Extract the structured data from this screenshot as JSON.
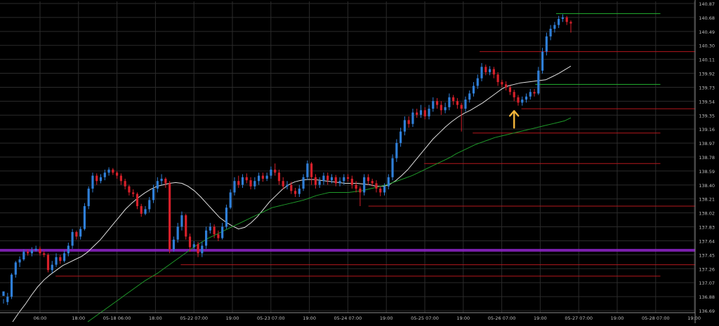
{
  "colors": {
    "background": "#000000",
    "grid": "#2b2b2b",
    "axis": "#8a8a8a",
    "tick_text": "#bfbfbf",
    "candle_up": "#2f7fd8",
    "candle_down": "#d8202a",
    "ma_fast": "#e0e0e0",
    "ma_slow": "#1f9a2a",
    "level_red": "#b3171c",
    "level_green": "#23b230",
    "purple_band": "#8e24c9",
    "arrow": "#f2b53a"
  },
  "icons": {
    "signal_arrow": "up-arrow-icon"
  },
  "chart_data": {
    "type": "candlestick",
    "ylim": [
      136.82,
      140.91
    ],
    "y_ticks": [
      "140.87",
      "140.68",
      "140.49",
      "140.30",
      "140.11",
      "139.92",
      "139.73",
      "139.54",
      "139.35",
      "139.16",
      "138.97",
      "138.78",
      "138.59",
      "138.40",
      "138.21",
      "138.02",
      "137.83",
      "137.64",
      "137.45",
      "137.26",
      "137.07",
      "136.88",
      "136.69"
    ],
    "x_ticks": [
      "06:00",
      "18:00",
      "05-18 06:00",
      "18:00",
      "05-22 07:00",
      "19:00",
      "05-23 07:00",
      "19:00",
      "05-24 07:00",
      "19:00",
      "05-25 07:00",
      "19:00",
      "05-26 07:00",
      "19:00",
      "05-27 07:00",
      "19:00",
      "05-28 07:00",
      "19:00"
    ],
    "candles": [
      [
        137.04,
        137.1,
        137.0,
        136.94
      ],
      [
        136.96,
        137.03,
        137.08,
        136.92
      ],
      [
        137.03,
        137.32,
        137.34,
        137.0
      ],
      [
        137.32,
        137.48,
        137.5,
        137.28
      ],
      [
        137.48,
        137.52,
        137.56,
        137.42
      ],
      [
        137.52,
        137.62,
        137.65,
        137.5
      ],
      [
        137.62,
        137.6,
        137.65,
        137.57
      ],
      [
        137.6,
        137.64,
        137.68,
        137.56
      ],
      [
        137.64,
        137.66,
        137.7,
        137.62
      ],
      [
        137.66,
        137.6,
        137.69,
        137.57
      ],
      [
        137.6,
        137.58,
        137.63,
        137.55
      ],
      [
        137.58,
        137.38,
        137.6,
        137.35
      ],
      [
        137.38,
        137.45,
        137.5,
        137.34
      ],
      [
        137.45,
        137.55,
        137.6,
        137.42
      ],
      [
        137.55,
        137.5,
        137.58,
        137.46
      ],
      [
        137.5,
        137.6,
        137.64,
        137.48
      ],
      [
        137.6,
        137.7,
        137.74,
        137.56
      ],
      [
        137.7,
        137.88,
        137.92,
        137.66
      ],
      [
        137.88,
        137.82,
        137.9,
        137.78
      ],
      [
        137.82,
        137.92,
        137.95,
        137.78
      ],
      [
        137.92,
        138.22,
        138.26,
        137.9
      ],
      [
        138.22,
        138.45,
        138.48,
        138.18
      ],
      [
        138.45,
        138.62,
        138.66,
        138.4
      ],
      [
        138.62,
        138.55,
        138.65,
        138.5
      ],
      [
        138.55,
        138.6,
        138.64,
        138.52
      ],
      [
        138.6,
        138.66,
        138.7,
        138.56
      ],
      [
        138.66,
        138.7,
        138.73,
        138.62
      ],
      [
        138.7,
        138.66,
        138.72,
        138.63
      ],
      [
        138.66,
        138.62,
        138.68,
        138.58
      ],
      [
        138.62,
        138.55,
        138.65,
        138.5
      ],
      [
        138.55,
        138.48,
        138.58,
        138.44
      ],
      [
        138.48,
        138.4,
        138.5,
        138.36
      ],
      [
        138.4,
        138.38,
        138.44,
        138.34
      ],
      [
        138.38,
        138.22,
        138.4,
        138.18
      ],
      [
        138.22,
        138.12,
        138.25,
        138.08
      ],
      [
        138.12,
        138.18,
        138.22,
        138.1
      ],
      [
        138.18,
        138.3,
        138.34,
        138.14
      ],
      [
        138.3,
        138.45,
        138.5,
        138.26
      ],
      [
        138.45,
        138.55,
        138.6,
        138.4
      ],
      [
        138.55,
        138.58,
        138.64,
        138.5
      ],
      [
        138.58,
        138.52,
        138.6,
        138.46
      ],
      [
        138.52,
        137.65,
        138.55,
        137.6
      ],
      [
        137.65,
        137.78,
        137.82,
        137.62
      ],
      [
        137.78,
        137.95,
        138.0,
        137.74
      ],
      [
        137.95,
        138.1,
        138.15,
        137.9
      ],
      [
        138.1,
        137.82,
        138.12,
        137.78
      ],
      [
        137.82,
        137.68,
        137.86,
        137.62
      ],
      [
        137.68,
        137.72,
        137.76,
        137.64
      ],
      [
        137.72,
        137.6,
        137.75,
        137.55
      ],
      [
        137.6,
        137.7,
        137.75,
        137.55
      ],
      [
        137.7,
        137.9,
        137.95,
        137.66
      ],
      [
        137.9,
        137.95,
        138.0,
        137.86
      ],
      [
        137.95,
        137.85,
        137.98,
        137.8
      ],
      [
        137.85,
        137.8,
        137.9,
        137.76
      ],
      [
        137.8,
        137.95,
        138.0,
        137.78
      ],
      [
        137.95,
        138.2,
        138.24,
        137.92
      ],
      [
        138.2,
        138.4,
        138.44,
        138.18
      ],
      [
        138.4,
        138.55,
        138.6,
        138.36
      ],
      [
        138.55,
        138.5,
        138.62,
        138.46
      ],
      [
        138.5,
        138.6,
        138.64,
        138.46
      ],
      [
        138.6,
        138.56,
        138.65,
        138.52
      ],
      [
        138.56,
        138.48,
        138.6,
        138.44
      ],
      [
        138.48,
        138.55,
        138.6,
        138.44
      ],
      [
        138.55,
        138.62,
        138.66,
        138.5
      ],
      [
        138.62,
        138.58,
        138.66,
        138.54
      ],
      [
        138.58,
        138.62,
        138.66,
        138.55
      ],
      [
        138.62,
        138.7,
        138.74,
        138.58
      ],
      [
        138.7,
        138.66,
        138.78,
        138.62
      ],
      [
        138.66,
        138.55,
        138.7,
        138.5
      ],
      [
        138.55,
        138.48,
        138.6,
        138.44
      ],
      [
        138.48,
        138.5,
        138.55,
        138.44
      ],
      [
        138.5,
        138.42,
        138.54,
        138.38
      ],
      [
        138.42,
        138.38,
        138.46,
        138.34
      ],
      [
        138.38,
        138.45,
        138.5,
        138.34
      ],
      [
        138.45,
        138.6,
        138.64,
        138.42
      ],
      [
        138.6,
        138.78,
        138.82,
        138.56
      ],
      [
        138.78,
        138.6,
        138.8,
        138.5
      ],
      [
        138.6,
        138.5,
        138.64,
        138.45
      ],
      [
        138.5,
        138.55,
        138.6,
        138.46
      ],
      [
        138.55,
        138.62,
        138.66,
        138.5
      ],
      [
        138.62,
        138.56,
        138.66,
        138.5
      ],
      [
        138.56,
        138.6,
        138.64,
        138.52
      ],
      [
        138.6,
        138.52,
        138.63,
        138.48
      ],
      [
        138.52,
        138.55,
        138.6,
        138.48
      ],
      [
        138.55,
        138.6,
        138.64,
        138.5
      ],
      [
        138.6,
        138.58,
        138.64,
        138.54
      ],
      [
        138.58,
        138.5,
        138.62,
        138.45
      ],
      [
        138.5,
        138.45,
        138.55,
        138.4
      ],
      [
        138.45,
        138.4,
        138.48,
        138.22
      ],
      [
        138.4,
        138.6,
        138.64,
        138.36
      ],
      [
        138.6,
        138.55,
        138.64,
        138.5
      ],
      [
        138.55,
        138.52,
        138.58,
        138.48
      ],
      [
        138.52,
        138.45,
        138.56,
        138.4
      ],
      [
        138.45,
        138.4,
        138.48,
        138.35
      ],
      [
        138.4,
        138.48,
        138.52,
        138.36
      ],
      [
        138.48,
        138.6,
        138.64,
        138.44
      ],
      [
        138.6,
        138.85,
        138.9,
        138.56
      ],
      [
        138.85,
        139.05,
        139.1,
        138.8
      ],
      [
        139.05,
        139.2,
        139.25,
        139.0
      ],
      [
        139.2,
        139.35,
        139.4,
        139.15
      ],
      [
        139.35,
        139.3,
        139.4,
        139.25
      ],
      [
        139.3,
        139.45,
        139.5,
        139.26
      ],
      [
        139.45,
        139.42,
        139.5,
        139.38
      ],
      [
        139.42,
        139.48,
        139.55,
        139.38
      ],
      [
        139.48,
        139.4,
        139.52,
        139.36
      ],
      [
        139.4,
        139.5,
        139.55,
        139.36
      ],
      [
        139.5,
        139.6,
        139.65,
        139.46
      ],
      [
        139.6,
        139.55,
        139.64,
        139.5
      ],
      [
        139.55,
        139.48,
        139.6,
        139.42
      ],
      [
        139.48,
        139.52,
        139.58,
        139.44
      ],
      [
        139.52,
        139.65,
        139.7,
        139.48
      ],
      [
        139.65,
        139.6,
        139.68,
        139.55
      ],
      [
        139.6,
        139.55,
        139.64,
        139.5
      ],
      [
        139.55,
        139.5,
        139.58,
        139.2
      ],
      [
        139.5,
        139.62,
        139.66,
        139.46
      ],
      [
        139.62,
        139.7,
        139.74,
        139.58
      ],
      [
        139.7,
        139.8,
        139.85,
        139.66
      ],
      [
        139.8,
        139.9,
        139.95,
        139.76
      ],
      [
        139.9,
        140.05,
        140.1,
        139.86
      ],
      [
        140.05,
        139.98,
        140.08,
        139.94
      ],
      [
        139.98,
        140.02,
        140.06,
        139.94
      ],
      [
        140.02,
        139.95,
        140.05,
        139.9
      ],
      [
        139.95,
        139.85,
        139.98,
        139.8
      ],
      [
        139.85,
        139.82,
        139.88,
        139.78
      ],
      [
        139.82,
        139.78,
        139.86,
        139.74
      ],
      [
        139.78,
        139.72,
        139.8,
        139.68
      ],
      [
        139.72,
        139.65,
        139.75,
        139.6
      ],
      [
        139.65,
        139.58,
        139.68,
        139.54
      ],
      [
        139.58,
        139.62,
        139.66,
        139.54
      ],
      [
        139.62,
        139.66,
        139.7,
        139.58
      ],
      [
        139.66,
        139.72,
        139.76,
        139.62
      ],
      [
        139.72,
        139.7,
        139.76,
        139.66
      ],
      [
        139.7,
        140.0,
        140.05,
        139.68
      ],
      [
        140.0,
        140.25,
        140.3,
        139.96
      ],
      [
        140.25,
        140.45,
        140.5,
        140.2
      ],
      [
        140.45,
        140.55,
        140.6,
        140.4
      ],
      [
        140.55,
        140.6,
        140.64,
        140.5
      ],
      [
        140.6,
        140.68,
        140.72,
        140.56
      ],
      [
        140.68,
        140.7,
        140.74,
        140.64
      ],
      [
        140.7,
        140.64,
        140.72,
        140.6
      ],
      [
        140.64,
        140.62,
        140.66,
        140.5
      ]
    ],
    "ma_fast": [
      136.7,
      136.82,
      136.93,
      137.05,
      137.16,
      137.25,
      137.32,
      137.38,
      137.44,
      137.48,
      137.52,
      137.56,
      137.62,
      137.7,
      137.78,
      137.88,
      137.98,
      138.08,
      138.18,
      138.26,
      138.33,
      138.39,
      138.44,
      138.48,
      138.5,
      138.52,
      138.53,
      138.52,
      138.48,
      138.42,
      138.34,
      138.25,
      138.16,
      138.07,
      138.01,
      137.96,
      137.92,
      137.94,
      138.0,
      138.08,
      138.18,
      138.28,
      138.36,
      138.44,
      138.5,
      138.54,
      138.56,
      138.57,
      138.57,
      138.56,
      138.55,
      138.54,
      138.53,
      138.52,
      138.52,
      138.52,
      138.51,
      138.5,
      138.48,
      138.48,
      138.5,
      138.55,
      138.62,
      138.7,
      138.8,
      138.9,
      139.0,
      139.1,
      139.18,
      139.26,
      139.33,
      139.39,
      139.44,
      139.48,
      139.53,
      139.58,
      139.64,
      139.7,
      139.76,
      139.8,
      139.82,
      139.84,
      139.85,
      139.86,
      139.87,
      139.88,
      139.92,
      139.96,
      140.01,
      140.06
    ],
    "ma_slow": [
      136.7,
      136.76,
      136.82,
      136.88,
      136.94,
      137.0,
      137.06,
      137.12,
      137.18,
      137.24,
      137.29,
      137.34,
      137.4,
      137.46,
      137.52,
      137.58,
      137.64,
      137.7,
      137.75,
      137.8,
      137.84,
      137.88,
      137.92,
      137.96,
      138.0,
      138.04,
      138.08,
      138.12,
      138.16,
      138.2,
      138.22,
      138.24,
      138.26,
      138.28,
      138.3,
      138.33,
      138.36,
      138.38,
      138.4,
      138.4,
      138.4,
      138.4,
      138.41,
      138.42,
      138.44,
      138.46,
      138.48,
      138.5,
      138.53,
      138.56,
      138.59,
      138.62,
      138.66,
      138.7,
      138.74,
      138.78,
      138.82,
      138.86,
      138.91,
      138.95,
      138.99,
      139.03,
      139.06,
      139.09,
      139.12,
      139.14,
      139.16,
      139.18,
      139.2,
      139.22,
      139.24,
      139.26,
      139.28,
      139.3,
      139.32,
      139.34,
      139.38
    ],
    "levels": [
      {
        "y": 137.64,
        "color": "purple",
        "x0": 0,
        "x1": 1,
        "band": true
      },
      {
        "y": 137.45,
        "color": "red",
        "x0": 0.26,
        "x1": 1
      },
      {
        "y": 137.3,
        "color": "red",
        "x0": 0.08,
        "x1": 0.95
      },
      {
        "y": 138.22,
        "color": "red",
        "x0": 0.53,
        "x1": 1
      },
      {
        "y": 138.78,
        "color": "red",
        "x0": 0.61,
        "x1": 0.95
      },
      {
        "y": 139.18,
        "color": "red",
        "x0": 0.68,
        "x1": 0.95
      },
      {
        "y": 139.5,
        "color": "red",
        "x0": 0.75,
        "x1": 1
      },
      {
        "y": 139.82,
        "color": "green",
        "x0": 0.77,
        "x1": 0.95
      },
      {
        "y": 140.25,
        "color": "red",
        "x0": 0.69,
        "x1": 1
      },
      {
        "y": 140.75,
        "color": "green",
        "x0": 0.8,
        "x1": 0.95
      }
    ],
    "signal_arrow": {
      "candle_index": 126,
      "y": 139.36
    },
    "grid": true
  }
}
